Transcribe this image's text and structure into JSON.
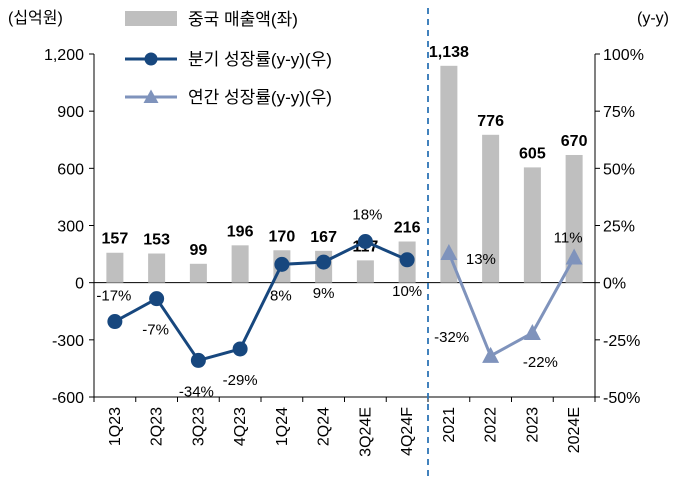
{
  "chart_data": {
    "type": "bar",
    "categories": [
      "1Q23",
      "2Q23",
      "3Q23",
      "4Q23",
      "1Q24",
      "2Q24",
      "3Q24E",
      "4Q24F",
      "2021",
      "2022",
      "2023",
      "2024E"
    ],
    "y_left": {
      "unit_label": "(십억원)",
      "range": [
        -600,
        1200
      ],
      "ticks": [
        -600,
        -300,
        0,
        300,
        600,
        900,
        1200
      ],
      "tick_labels": [
        "-600",
        "-300",
        "0",
        "300",
        "600",
        "900",
        "1,200"
      ]
    },
    "y_right": {
      "unit_label": "(y-y)",
      "range": [
        -50,
        100
      ],
      "ticks": [
        -50,
        -25,
        0,
        25,
        50,
        75,
        100
      ],
      "tick_labels": [
        "-50%",
        "-25%",
        "0%",
        "25%",
        "50%",
        "75%",
        "100%"
      ]
    },
    "series": [
      {
        "name": "중국 매출액(좌)",
        "type": "bar",
        "axis": "left",
        "color": "#BFBFBF",
        "values": [
          157,
          153,
          99,
          196,
          170,
          167,
          117,
          216,
          1138,
          776,
          605,
          670
        ],
        "labels": [
          "157",
          "153",
          "99",
          "196",
          "170",
          "167",
          "117",
          "216",
          "1,138",
          "776",
          "605",
          "670"
        ]
      },
      {
        "name": "분기 성장률(y-y)(우)",
        "type": "line",
        "axis": "right",
        "color": "#17477E",
        "marker": "circle",
        "x": [
          "1Q23",
          "2Q23",
          "3Q23",
          "4Q23",
          "1Q24",
          "2Q24",
          "3Q24E",
          "4Q24F"
        ],
        "values": [
          -17,
          -7,
          -34,
          -29,
          8,
          9,
          18,
          10
        ],
        "labels": [
          "-17%",
          "-7%",
          "-34%",
          "-29%",
          "8%",
          "9%",
          "18%",
          "10%"
        ]
      },
      {
        "name": "연간 성장률(y-y)(우)",
        "type": "line",
        "axis": "right",
        "color": "#7F93BC",
        "marker": "triangle",
        "x": [
          "2021",
          "2022",
          "2023",
          "2024E"
        ],
        "values": [
          13,
          -32,
          -22,
          11
        ],
        "labels": [
          "13%",
          "-32%",
          "-22%",
          "11%"
        ]
      }
    ],
    "divider": {
      "between": [
        "4Q24F",
        "2021"
      ],
      "style": "dashed",
      "color": "#2E75B6"
    },
    "grid": false,
    "legend": "top-left"
  }
}
